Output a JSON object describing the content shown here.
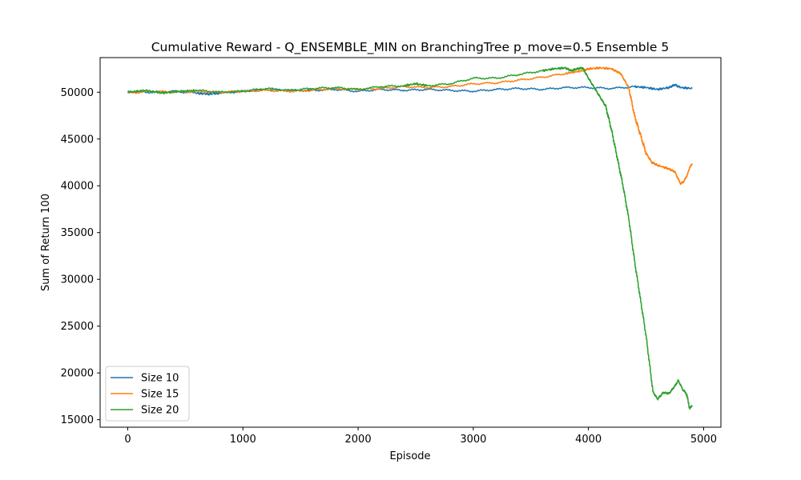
{
  "chart_data": {
    "type": "line",
    "title": "Cumulative Reward - Q_ENSEMBLE_MIN on BranchingTree p_move=0.5 Ensemble 5",
    "xlabel": "Episode",
    "ylabel": "Sum of Return 100",
    "xlim": [
      -240,
      5150
    ],
    "ylim": [
      14200,
      53700
    ],
    "xticks": [
      0,
      1000,
      2000,
      3000,
      4000,
      5000
    ],
    "yticks": [
      15000,
      20000,
      25000,
      30000,
      35000,
      40000,
      45000,
      50000
    ],
    "grid": false,
    "legend": "lower-left",
    "series": [
      {
        "name": "Size 10",
        "color": "#1f77b4",
        "points": [
          [
            0,
            50100
          ],
          [
            200,
            50000
          ],
          [
            400,
            50100
          ],
          [
            600,
            49900
          ],
          [
            700,
            49800
          ],
          [
            800,
            49900
          ],
          [
            1000,
            50100
          ],
          [
            1200,
            50300
          ],
          [
            1400,
            50200
          ],
          [
            1600,
            50200
          ],
          [
            1800,
            50300
          ],
          [
            2000,
            50100
          ],
          [
            2200,
            50300
          ],
          [
            2400,
            50200
          ],
          [
            2600,
            50300
          ],
          [
            2800,
            50200
          ],
          [
            3000,
            50100
          ],
          [
            3200,
            50300
          ],
          [
            3400,
            50400
          ],
          [
            3600,
            50300
          ],
          [
            3800,
            50500
          ],
          [
            4000,
            50500
          ],
          [
            4200,
            50400
          ],
          [
            4400,
            50600
          ],
          [
            4500,
            50500
          ],
          [
            4600,
            50300
          ],
          [
            4700,
            50500
          ],
          [
            4750,
            50800
          ],
          [
            4800,
            50500
          ],
          [
            4900,
            50400
          ]
        ]
      },
      {
        "name": "Size 15",
        "color": "#ff7f0e",
        "points": [
          [
            0,
            49900
          ],
          [
            200,
            50100
          ],
          [
            400,
            50000
          ],
          [
            600,
            50100
          ],
          [
            800,
            50000
          ],
          [
            1000,
            50100
          ],
          [
            1200,
            50200
          ],
          [
            1400,
            50100
          ],
          [
            1600,
            50200
          ],
          [
            1800,
            50400
          ],
          [
            2000,
            50300
          ],
          [
            2200,
            50400
          ],
          [
            2400,
            50600
          ],
          [
            2600,
            50500
          ],
          [
            2800,
            50600
          ],
          [
            3000,
            50900
          ],
          [
            3200,
            51000
          ],
          [
            3400,
            51300
          ],
          [
            3600,
            51600
          ],
          [
            3800,
            52000
          ],
          [
            3950,
            52300
          ],
          [
            4000,
            52500
          ],
          [
            4100,
            52600
          ],
          [
            4200,
            52500
          ],
          [
            4280,
            52000
          ],
          [
            4350,
            50500
          ],
          [
            4400,
            47500
          ],
          [
            4450,
            45500
          ],
          [
            4500,
            43500
          ],
          [
            4550,
            42500
          ],
          [
            4600,
            42200
          ],
          [
            4700,
            41800
          ],
          [
            4750,
            41500
          ],
          [
            4800,
            40200
          ],
          [
            4830,
            40500
          ],
          [
            4860,
            41200
          ],
          [
            4880,
            42000
          ],
          [
            4900,
            42300
          ]
        ]
      },
      {
        "name": "Size 20",
        "color": "#2ca02c",
        "points": [
          [
            0,
            50000
          ],
          [
            150,
            50200
          ],
          [
            300,
            49900
          ],
          [
            450,
            50100
          ],
          [
            600,
            50200
          ],
          [
            800,
            50000
          ],
          [
            1000,
            50100
          ],
          [
            1200,
            50400
          ],
          [
            1400,
            50200
          ],
          [
            1600,
            50400
          ],
          [
            1800,
            50500
          ],
          [
            2000,
            50300
          ],
          [
            2200,
            50600
          ],
          [
            2400,
            50700
          ],
          [
            2500,
            50900
          ],
          [
            2600,
            50700
          ],
          [
            2800,
            50900
          ],
          [
            3000,
            51500
          ],
          [
            3200,
            51500
          ],
          [
            3400,
            51900
          ],
          [
            3600,
            52300
          ],
          [
            3700,
            52500
          ],
          [
            3800,
            52600
          ],
          [
            3850,
            52300
          ],
          [
            3900,
            52500
          ],
          [
            3950,
            52600
          ],
          [
            4000,
            51500
          ],
          [
            4050,
            50500
          ],
          [
            4100,
            49500
          ],
          [
            4150,
            48500
          ],
          [
            4200,
            46000
          ],
          [
            4250,
            43000
          ],
          [
            4300,
            40000
          ],
          [
            4350,
            36500
          ],
          [
            4400,
            32000
          ],
          [
            4450,
            28000
          ],
          [
            4500,
            24000
          ],
          [
            4530,
            21000
          ],
          [
            4560,
            18000
          ],
          [
            4600,
            17200
          ],
          [
            4650,
            17900
          ],
          [
            4700,
            17800
          ],
          [
            4750,
            18600
          ],
          [
            4780,
            19200
          ],
          [
            4820,
            18200
          ],
          [
            4850,
            17800
          ],
          [
            4880,
            16200
          ],
          [
            4900,
            16500
          ]
        ]
      }
    ]
  }
}
